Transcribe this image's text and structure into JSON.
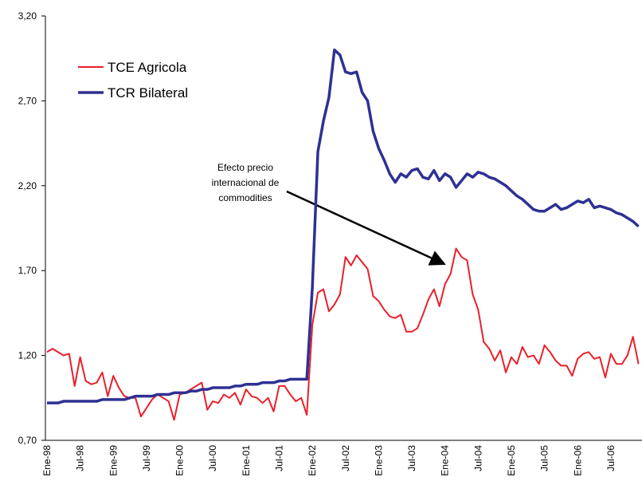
{
  "chart_data": {
    "type": "line",
    "categories": [
      "Ene-98",
      null,
      null,
      null,
      null,
      null,
      "Jul-98",
      null,
      null,
      null,
      null,
      null,
      "Ene-99",
      null,
      null,
      null,
      null,
      null,
      "Jul-99",
      null,
      null,
      null,
      null,
      null,
      "Ene-00",
      null,
      null,
      null,
      null,
      null,
      "Jul-00",
      null,
      null,
      null,
      null,
      null,
      "Ene-01",
      null,
      null,
      null,
      null,
      null,
      "Jul-01",
      null,
      null,
      null,
      null,
      null,
      "Ene-02",
      null,
      null,
      null,
      null,
      null,
      "Jul-02",
      null,
      null,
      null,
      null,
      null,
      "Ene-03",
      null,
      null,
      null,
      null,
      null,
      "Jul-03",
      null,
      null,
      null,
      null,
      null,
      "Ene-04",
      null,
      null,
      null,
      null,
      null,
      "Jul-04",
      null,
      null,
      null,
      null,
      null,
      "Ene-05",
      null,
      null,
      null,
      null,
      null,
      "Jul-05",
      null,
      null,
      null,
      null,
      null,
      "Ene-06",
      null,
      null,
      null,
      null,
      null,
      "Jul-06",
      null,
      null,
      null,
      null,
      null
    ],
    "series": [
      {
        "name": "TCE Agricola",
        "color": "#e8202a",
        "width": 2,
        "values": [
          1.22,
          1.24,
          1.22,
          1.2,
          1.21,
          1.02,
          1.19,
          1.05,
          1.03,
          1.04,
          1.1,
          0.96,
          1.08,
          1.01,
          0.96,
          0.95,
          0.95,
          0.84,
          0.89,
          0.94,
          0.97,
          0.95,
          0.93,
          0.82,
          0.97,
          0.98,
          1.0,
          1.02,
          1.04,
          0.88,
          0.93,
          0.92,
          0.97,
          0.95,
          0.98,
          0.91,
          1.0,
          0.96,
          0.95,
          0.92,
          0.95,
          0.87,
          1.02,
          1.02,
          0.97,
          0.93,
          0.95,
          0.85,
          1.38,
          1.57,
          1.59,
          1.46,
          1.5,
          1.56,
          1.78,
          1.73,
          1.79,
          1.75,
          1.71,
          1.55,
          1.52,
          1.47,
          1.43,
          1.42,
          1.44,
          1.34,
          1.34,
          1.36,
          1.44,
          1.53,
          1.59,
          1.49,
          1.62,
          1.68,
          1.83,
          1.78,
          1.76,
          1.56,
          1.47,
          1.28,
          1.24,
          1.17,
          1.23,
          1.1,
          1.19,
          1.15,
          1.25,
          1.19,
          1.2,
          1.15,
          1.26,
          1.22,
          1.17,
          1.14,
          1.14,
          1.08,
          1.18,
          1.21,
          1.22,
          1.18,
          1.19,
          1.07,
          1.21,
          1.15,
          1.15,
          1.2,
          1.31,
          1.15
        ]
      },
      {
        "name": "TCR Bilateral",
        "color": "#2e3192",
        "width": 3.5,
        "values": [
          0.92,
          0.92,
          0.92,
          0.93,
          0.93,
          0.93,
          0.93,
          0.93,
          0.93,
          0.93,
          0.94,
          0.94,
          0.94,
          0.94,
          0.94,
          0.95,
          0.96,
          0.96,
          0.96,
          0.96,
          0.97,
          0.97,
          0.97,
          0.98,
          0.98,
          0.98,
          0.99,
          0.99,
          1.0,
          1.0,
          1.01,
          1.01,
          1.01,
          1.01,
          1.02,
          1.02,
          1.03,
          1.03,
          1.03,
          1.04,
          1.04,
          1.04,
          1.05,
          1.05,
          1.06,
          1.06,
          1.06,
          1.06,
          1.6,
          2.4,
          2.58,
          2.72,
          3.0,
          2.97,
          2.87,
          2.86,
          2.87,
          2.75,
          2.7,
          2.52,
          2.42,
          2.35,
          2.27,
          2.22,
          2.27,
          2.25,
          2.29,
          2.3,
          2.25,
          2.24,
          2.29,
          2.23,
          2.27,
          2.25,
          2.19,
          2.23,
          2.27,
          2.25,
          2.28,
          2.27,
          2.25,
          2.24,
          2.22,
          2.2,
          2.17,
          2.14,
          2.12,
          2.09,
          2.06,
          2.05,
          2.05,
          2.07,
          2.09,
          2.06,
          2.07,
          2.09,
          2.11,
          2.1,
          2.12,
          2.07,
          2.08,
          2.07,
          2.06,
          2.04,
          2.03,
          2.01,
          1.99,
          1.96
        ]
      }
    ],
    "ylim": [
      0.7,
      3.2
    ],
    "yticks": [
      {
        "value": 0.7,
        "label": "0,70"
      },
      {
        "value": 1.2,
        "label": "1,20"
      },
      {
        "value": 1.7,
        "label": "1,70"
      },
      {
        "value": 2.2,
        "label": "2,20"
      },
      {
        "value": 2.7,
        "label": "2,70"
      },
      {
        "value": 3.2,
        "label": "3,20"
      }
    ],
    "annotation": [
      "Efecto precio",
      "internacional de",
      "commodities"
    ],
    "grid": false
  }
}
